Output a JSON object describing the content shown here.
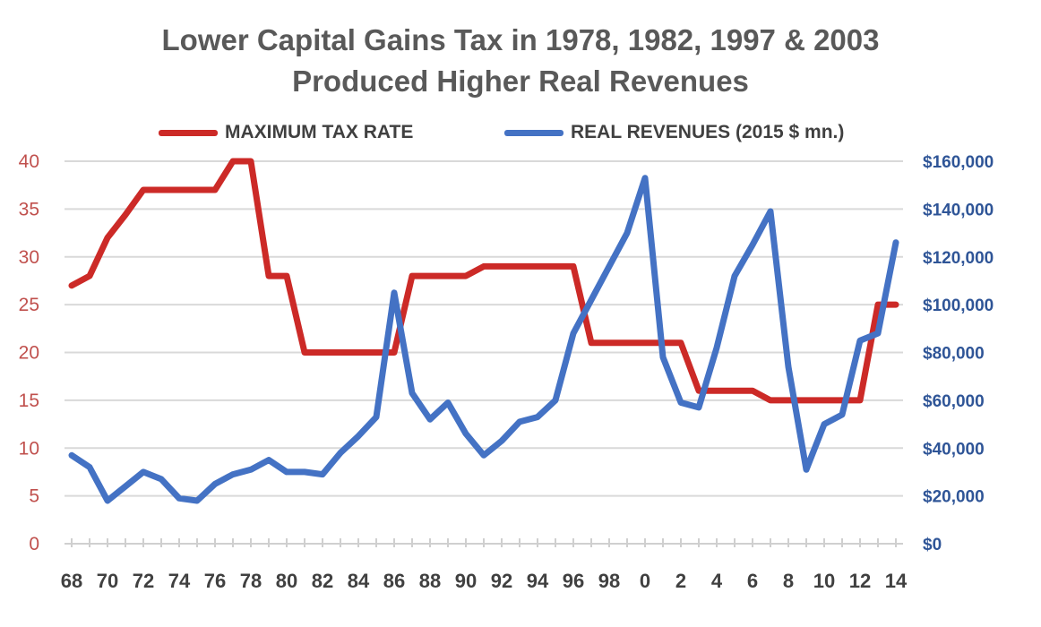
{
  "chart_data": {
    "type": "line",
    "title": "Lower Capital Gains Tax in 1978, 1982, 1997 & 2003",
    "subtitle": "Produced Higher Real Revenues",
    "colors": {
      "tax": "#cc2a27",
      "revenue": "#4472c4",
      "grid": "#d9d9d9"
    },
    "legend_placement": "top",
    "grid": true,
    "x_ticks": [
      "68",
      "70",
      "72",
      "74",
      "76",
      "78",
      "80",
      "82",
      "84",
      "86",
      "88",
      "90",
      "92",
      "94",
      "96",
      "98",
      "0",
      "2",
      "4",
      "6",
      "8",
      "10",
      "12",
      "14"
    ],
    "y_left": {
      "ticks": [
        "0",
        "5",
        "10",
        "15",
        "20",
        "25",
        "30",
        "35",
        "40"
      ],
      "range": [
        0,
        40
      ]
    },
    "y_right": {
      "ticks": [
        "$0",
        "$20,000",
        "$40,000",
        "$60,000",
        "$80,000",
        "$100,000",
        "$120,000",
        "$140,000",
        "$160,000"
      ],
      "range": [
        0,
        160000
      ]
    },
    "series": [
      {
        "name": "MAXIMUM TAX RATE",
        "axis": "left",
        "x": [
          1968,
          1969,
          1970,
          1971,
          1972,
          1973,
          1974,
          1975,
          1976,
          1977,
          1978,
          1979,
          1980,
          1981,
          1982,
          1983,
          1984,
          1985,
          1986,
          1987,
          1988,
          1989,
          1990,
          1991,
          1992,
          1993,
          1994,
          1995,
          1996,
          1997,
          1998,
          1999,
          2000,
          2001,
          2002,
          2003,
          2004,
          2005,
          2006,
          2007,
          2008,
          2009,
          2010,
          2011,
          2012,
          2013,
          2014
        ],
        "values": [
          27,
          28,
          32,
          34.4,
          37,
          37,
          37,
          37,
          37,
          40,
          40,
          28,
          28,
          20,
          20,
          20,
          20,
          20,
          20,
          28,
          28,
          28,
          28,
          29,
          29,
          29,
          29,
          29,
          29,
          21,
          21,
          21,
          21,
          21,
          21,
          16,
          16,
          16,
          16,
          15,
          15,
          15,
          15,
          15,
          15,
          25,
          25
        ]
      },
      {
        "name": "REAL REVENUES (2015 $ mn.)",
        "axis": "right",
        "x": [
          1968,
          1969,
          1970,
          1971,
          1972,
          1973,
          1974,
          1975,
          1976,
          1977,
          1978,
          1979,
          1980,
          1981,
          1982,
          1983,
          1984,
          1985,
          1986,
          1987,
          1988,
          1989,
          1990,
          1991,
          1992,
          1993,
          1994,
          1995,
          1996,
          1997,
          1998,
          1999,
          2000,
          2001,
          2002,
          2003,
          2004,
          2005,
          2006,
          2007,
          2008,
          2009,
          2010,
          2011,
          2012,
          2013,
          2014
        ],
        "values": [
          37000,
          32000,
          18000,
          24000,
          30000,
          27000,
          19000,
          18000,
          25000,
          29000,
          31000,
          35000,
          30000,
          30000,
          29000,
          38000,
          45000,
          53000,
          105000,
          63000,
          52000,
          59000,
          46000,
          37000,
          43000,
          51000,
          53000,
          60000,
          88000,
          102000,
          116000,
          130000,
          153000,
          78000,
          59000,
          57000,
          82000,
          112000,
          125000,
          139000,
          74000,
          31000,
          50000,
          54000,
          85000,
          88000,
          126000
        ]
      }
    ]
  }
}
